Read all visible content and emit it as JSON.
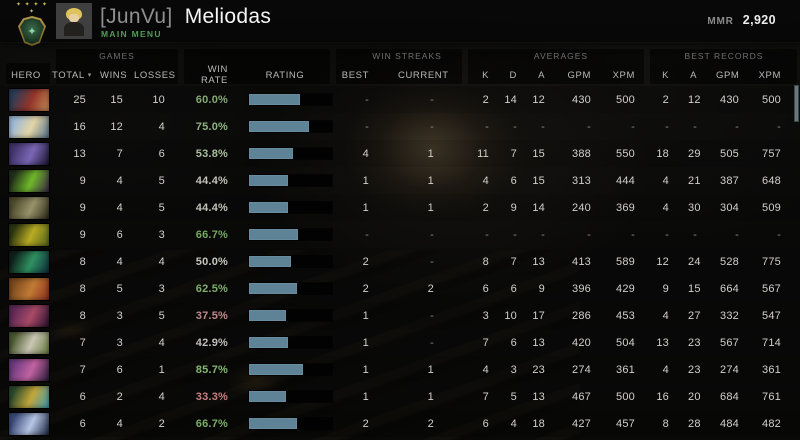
{
  "topbar": {
    "player_tag": "[JunVu]",
    "player_name": "Meliodas",
    "subtitle": "MAIN MENU",
    "mmr_label": "MMR",
    "mmr_value": "2,920",
    "emblem_stars": "✦ ✦ ✦ ✦ ✦",
    "emblem_glyph": "✦"
  },
  "colors": {
    "accent_green": "#4f9e52",
    "bar_fill": "#5e8296",
    "win_rate_high": "#7fae6e",
    "win_rate_mid": "#c6c6be",
    "win_rate_low": "#c57f80"
  },
  "table": {
    "header": {
      "hero": "HERO",
      "games_group": "GAMES",
      "total": "TOTAL",
      "sort_chevron": "▾",
      "wins": "WINS",
      "losses": "LOSSES",
      "win_rate": "WIN RATE",
      "rating": "RATING",
      "streaks_group": "WIN STREAKS",
      "best": "BEST",
      "current": "CURRENT",
      "averages_group": "AVERAGES",
      "k": "K",
      "d": "D",
      "a": "A",
      "gpm": "GPM",
      "xpm": "XPM",
      "records_group": "BEST RECORDS",
      "rk": "K",
      "ra": "A",
      "rgpm": "GPM",
      "rxpm": "XPM"
    },
    "rows": [
      {
        "hero": {
          "name": "hero-1",
          "colors": [
            "#2c3d58",
            "#93342a",
            "#c89058"
          ]
        },
        "total": "25",
        "wins": "15",
        "losses": "10",
        "win_rate": "60.0%",
        "win_rate_color": "#86a877",
        "rating_pct": 62,
        "streak_best": "-",
        "streak_current": "-",
        "avg": {
          "k": "2",
          "d": "14",
          "a": "12",
          "gpm": "430",
          "xpm": "500"
        },
        "best": {
          "k": "2",
          "a": "12",
          "gpm": "430",
          "xpm": "500"
        }
      },
      {
        "hero": {
          "name": "hero-2",
          "colors": [
            "#9db9d8",
            "#e3d5a6",
            "#55718f"
          ]
        },
        "total": "16",
        "wins": "12",
        "losses": "4",
        "win_rate": "75.0%",
        "win_rate_color": "#8fb381",
        "rating_pct": 72,
        "streak_best": "-",
        "streak_current": "-",
        "avg": {
          "k": "-",
          "d": "-",
          "a": "-",
          "gpm": "-",
          "xpm": "-"
        },
        "best": {
          "k": "-",
          "a": "-",
          "gpm": "-",
          "xpm": "-"
        }
      },
      {
        "hero": {
          "name": "hero-3",
          "colors": [
            "#43356e",
            "#7a67b5",
            "#1b1430"
          ]
        },
        "total": "13",
        "wins": "7",
        "losses": "6",
        "win_rate": "53.8%",
        "win_rate_color": "#a8bfa0",
        "rating_pct": 53,
        "streak_best": "4",
        "streak_current": "1",
        "avg": {
          "k": "11",
          "d": "7",
          "a": "15",
          "gpm": "388",
          "xpm": "550"
        },
        "best": {
          "k": "18",
          "a": "29",
          "gpm": "505",
          "xpm": "757"
        }
      },
      {
        "hero": {
          "name": "hero-4",
          "colors": [
            "#23301c",
            "#6fb82a",
            "#3b2347"
          ]
        },
        "total": "9",
        "wins": "4",
        "losses": "5",
        "win_rate": "44.4%",
        "win_rate_color": "#c4c0b8",
        "rating_pct": 47,
        "streak_best": "1",
        "streak_current": "1",
        "avg": {
          "k": "4",
          "d": "6",
          "a": "15",
          "gpm": "313",
          "xpm": "444"
        },
        "best": {
          "k": "4",
          "a": "21",
          "gpm": "387",
          "xpm": "648"
        }
      },
      {
        "hero": {
          "name": "hero-5",
          "colors": [
            "#4f4c2e",
            "#98936a",
            "#2c2a18"
          ]
        },
        "total": "9",
        "wins": "4",
        "losses": "5",
        "win_rate": "44.4%",
        "win_rate_color": "#c4c0b8",
        "rating_pct": 47,
        "streak_best": "1",
        "streak_current": "1",
        "avg": {
          "k": "2",
          "d": "9",
          "a": "14",
          "gpm": "240",
          "xpm": "369"
        },
        "best": {
          "k": "4",
          "a": "30",
          "gpm": "304",
          "xpm": "509"
        }
      },
      {
        "hero": {
          "name": "hero-6",
          "colors": [
            "#2d3710",
            "#b8ab24",
            "#53641a"
          ]
        },
        "total": "9",
        "wins": "6",
        "losses": "3",
        "win_rate": "66.7%",
        "win_rate_color": "#74a863",
        "rating_pct": 59,
        "streak_best": "-",
        "streak_current": "-",
        "avg": {
          "k": "-",
          "d": "-",
          "a": "-",
          "gpm": "-",
          "xpm": "-"
        },
        "best": {
          "k": "-",
          "a": "-",
          "gpm": "-",
          "xpm": "-"
        }
      },
      {
        "hero": {
          "name": "hero-7",
          "colors": [
            "#10211c",
            "#2f9160",
            "#0d2c3b"
          ]
        },
        "total": "8",
        "wins": "4",
        "losses": "4",
        "win_rate": "50.0%",
        "win_rate_color": "#c6c6be",
        "rating_pct": 50,
        "streak_best": "2",
        "streak_current": "-",
        "avg": {
          "k": "8",
          "d": "7",
          "a": "13",
          "gpm": "413",
          "xpm": "589"
        },
        "best": {
          "k": "12",
          "a": "24",
          "gpm": "528",
          "xpm": "775"
        }
      },
      {
        "hero": {
          "name": "hero-8",
          "colors": [
            "#7c4a1e",
            "#c27b35",
            "#8c2e1c"
          ]
        },
        "total": "8",
        "wins": "5",
        "losses": "3",
        "win_rate": "62.5%",
        "win_rate_color": "#7fae6e",
        "rating_pct": 58,
        "streak_best": "2",
        "streak_current": "2",
        "avg": {
          "k": "6",
          "d": "6",
          "a": "9",
          "gpm": "396",
          "xpm": "429"
        },
        "best": {
          "k": "9",
          "a": "15",
          "gpm": "664",
          "xpm": "567"
        }
      },
      {
        "hero": {
          "name": "hero-9",
          "colors": [
            "#5e2a58",
            "#a84a66",
            "#2a1130"
          ]
        },
        "total": "8",
        "wins": "3",
        "losses": "5",
        "win_rate": "37.5%",
        "win_rate_color": "#c08a8c",
        "rating_pct": 44,
        "streak_best": "1",
        "streak_current": "-",
        "avg": {
          "k": "3",
          "d": "10",
          "a": "17",
          "gpm": "286",
          "xpm": "453"
        },
        "best": {
          "k": "4",
          "a": "27",
          "gpm": "332",
          "xpm": "547"
        }
      },
      {
        "hero": {
          "name": "hero-10",
          "colors": [
            "#4c5a30",
            "#c9c6b4",
            "#66783c"
          ]
        },
        "total": "7",
        "wins": "3",
        "losses": "4",
        "win_rate": "42.9%",
        "win_rate_color": "#c2bcb6",
        "rating_pct": 47,
        "streak_best": "1",
        "streak_current": "-",
        "avg": {
          "k": "7",
          "d": "6",
          "a": "13",
          "gpm": "420",
          "xpm": "504"
        },
        "best": {
          "k": "13",
          "a": "23",
          "gpm": "567",
          "xpm": "714"
        }
      },
      {
        "hero": {
          "name": "hero-11",
          "colors": [
            "#6e3c80",
            "#c263a3",
            "#291a38"
          ]
        },
        "total": "7",
        "wins": "6",
        "losses": "1",
        "win_rate": "85.7%",
        "win_rate_color": "#84b873",
        "rating_pct": 65,
        "streak_best": "1",
        "streak_current": "1",
        "avg": {
          "k": "4",
          "d": "3",
          "a": "23",
          "gpm": "274",
          "xpm": "361"
        },
        "best": {
          "k": "4",
          "a": "23",
          "gpm": "274",
          "xpm": "361"
        }
      },
      {
        "hero": {
          "name": "hero-12",
          "colors": [
            "#2c4a2c",
            "#c2a63a",
            "#3e9cb5"
          ]
        },
        "total": "6",
        "wins": "2",
        "losses": "4",
        "win_rate": "33.3%",
        "win_rate_color": "#c57f80",
        "rating_pct": 44,
        "streak_best": "1",
        "streak_current": "1",
        "avg": {
          "k": "7",
          "d": "5",
          "a": "13",
          "gpm": "467",
          "xpm": "500"
        },
        "best": {
          "k": "16",
          "a": "20",
          "gpm": "684",
          "xpm": "761"
        }
      },
      {
        "hero": {
          "name": "hero-13",
          "colors": [
            "#3c4c7c",
            "#b6c6e4",
            "#19233f"
          ]
        },
        "total": "6",
        "wins": "4",
        "losses": "2",
        "win_rate": "66.7%",
        "win_rate_color": "#79ad68",
        "rating_pct": 58,
        "streak_best": "2",
        "streak_current": "2",
        "avg": {
          "k": "6",
          "d": "4",
          "a": "18",
          "gpm": "427",
          "xpm": "457"
        },
        "best": {
          "k": "8",
          "a": "28",
          "gpm": "484",
          "xpm": "482"
        }
      }
    ]
  }
}
